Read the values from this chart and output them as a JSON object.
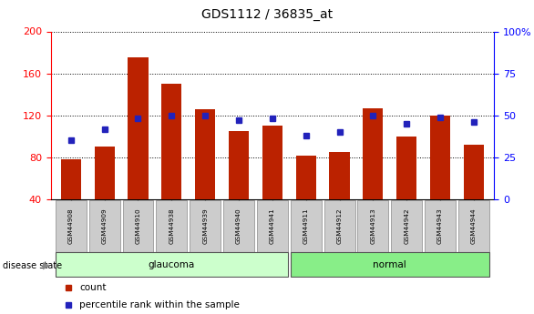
{
  "title": "GDS1112 / 36835_at",
  "samples": [
    "GSM44908",
    "GSM44909",
    "GSM44910",
    "GSM44938",
    "GSM44939",
    "GSM44940",
    "GSM44941",
    "GSM44911",
    "GSM44912",
    "GSM44913",
    "GSM44942",
    "GSM44943",
    "GSM44944"
  ],
  "counts": [
    78,
    90,
    175,
    150,
    126,
    105,
    110,
    82,
    85,
    127,
    100,
    120,
    92
  ],
  "percentiles": [
    35,
    42,
    48,
    50,
    50,
    47,
    48,
    38,
    40,
    50,
    45,
    49,
    46
  ],
  "groups": [
    "glaucoma",
    "glaucoma",
    "glaucoma",
    "glaucoma",
    "glaucoma",
    "glaucoma",
    "glaucoma",
    "normal",
    "normal",
    "normal",
    "normal",
    "normal",
    "normal"
  ],
  "ylim_left": [
    40,
    200
  ],
  "ylim_right": [
    0,
    100
  ],
  "yticks_left": [
    40,
    80,
    120,
    160,
    200
  ],
  "yticks_right": [
    0,
    25,
    50,
    75,
    100
  ],
  "bar_color": "#bb2200",
  "marker_color": "#2222bb",
  "glaucoma_color": "#ccffcc",
  "normal_color": "#88ee88",
  "label_bg_color": "#cccccc"
}
